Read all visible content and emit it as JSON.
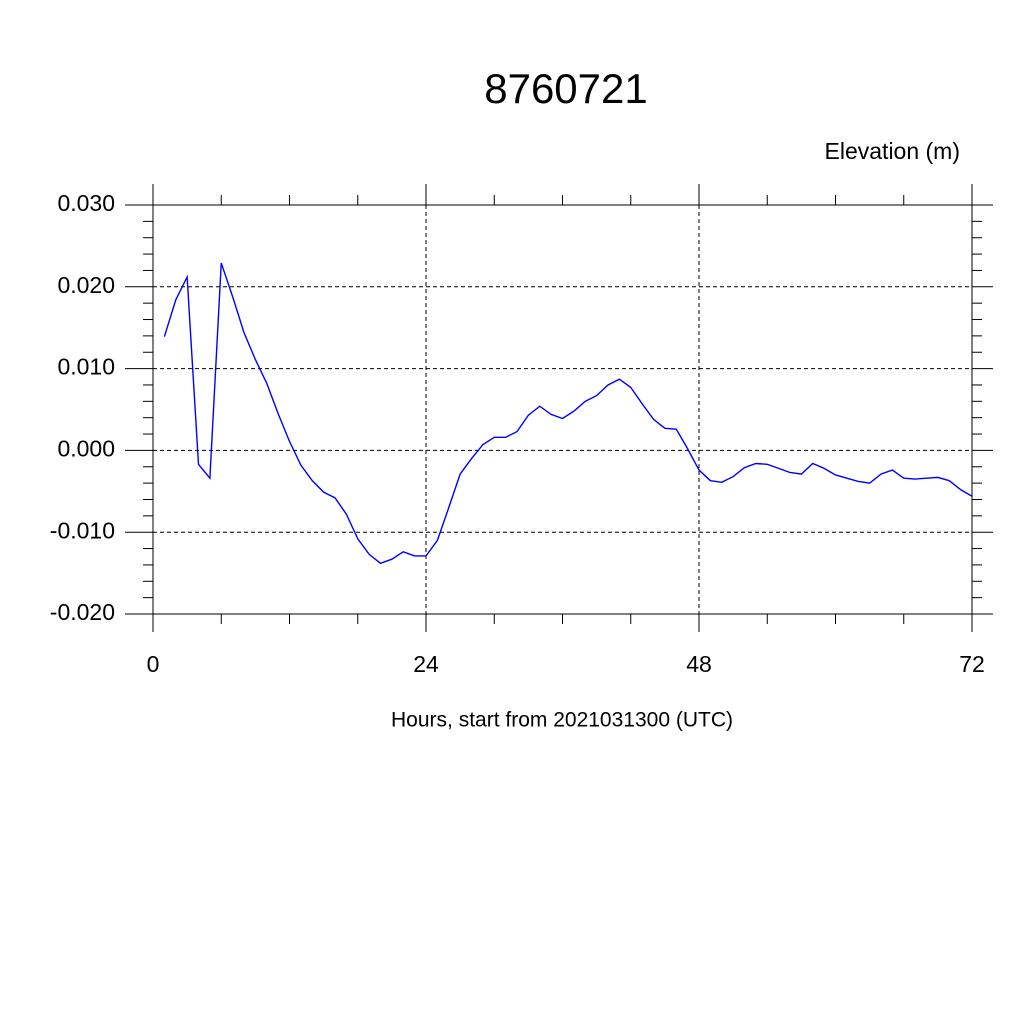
{
  "chart_data": {
    "type": "line",
    "title": "8760721",
    "ylabel": "Elevation (m)",
    "xlabel": "Hours, start from 2021031300 (UTC)",
    "x": [
      1,
      2,
      3,
      4,
      5,
      6,
      7,
      8,
      9,
      10,
      11,
      12,
      13,
      14,
      15,
      16,
      17,
      18,
      19,
      20,
      21,
      22,
      23,
      24,
      25,
      26,
      27,
      28,
      29,
      30,
      31,
      32,
      33,
      34,
      35,
      36,
      37,
      38,
      39,
      40,
      41,
      42,
      43,
      44,
      45,
      46,
      47,
      48,
      49,
      50,
      51,
      52,
      53,
      54,
      55,
      56,
      57,
      58,
      59,
      60,
      61,
      62,
      63,
      64,
      65,
      66,
      67,
      68,
      69,
      70,
      71,
      72
    ],
    "values": [
      0.0139,
      0.0184,
      0.0212,
      -0.0017,
      -0.0034,
      0.0229,
      0.0188,
      0.0144,
      0.0111,
      0.0082,
      0.0045,
      0.0011,
      -0.0018,
      -0.0037,
      -0.0051,
      -0.0058,
      -0.0078,
      -0.0108,
      -0.0127,
      -0.0138,
      -0.0133,
      -0.0124,
      -0.0129,
      -0.0129,
      -0.011,
      -0.007,
      -0.0029,
      -0.001,
      0.0007,
      0.0016,
      0.0016,
      0.0023,
      0.0043,
      0.0054,
      0.0044,
      0.0039,
      0.0048,
      0.006,
      0.0067,
      0.008,
      0.0087,
      0.0077,
      0.0057,
      0.0038,
      0.0027,
      0.0026,
      0.0002,
      -0.0024,
      -0.0037,
      -0.0039,
      -0.0032,
      -0.0021,
      -0.0016,
      -0.0017,
      -0.0022,
      -0.0027,
      -0.0029,
      -0.0016,
      -0.0022,
      -0.003,
      -0.0034,
      -0.0038,
      -0.004,
      -0.0029,
      -0.0024,
      -0.0034,
      -0.0035,
      -0.0034,
      -0.0033,
      -0.0037,
      -0.0048,
      -0.0056
    ],
    "color": "#0000ff",
    "xlim": [
      0,
      72
    ],
    "xticks": [
      0,
      24,
      48,
      72
    ],
    "ylim": [
      -0.02,
      0.03
    ],
    "yticks": [
      {
        "value": -0.02,
        "label": "-0.020"
      },
      {
        "value": -0.01,
        "label": "-0.010"
      },
      {
        "value": 0,
        "label": "0.000"
      },
      {
        "value": 0.01,
        "label": "0.010"
      },
      {
        "value": 0.02,
        "label": "0.020"
      },
      {
        "value": 0.03,
        "label": "0.030"
      }
    ],
    "grid": true
  }
}
